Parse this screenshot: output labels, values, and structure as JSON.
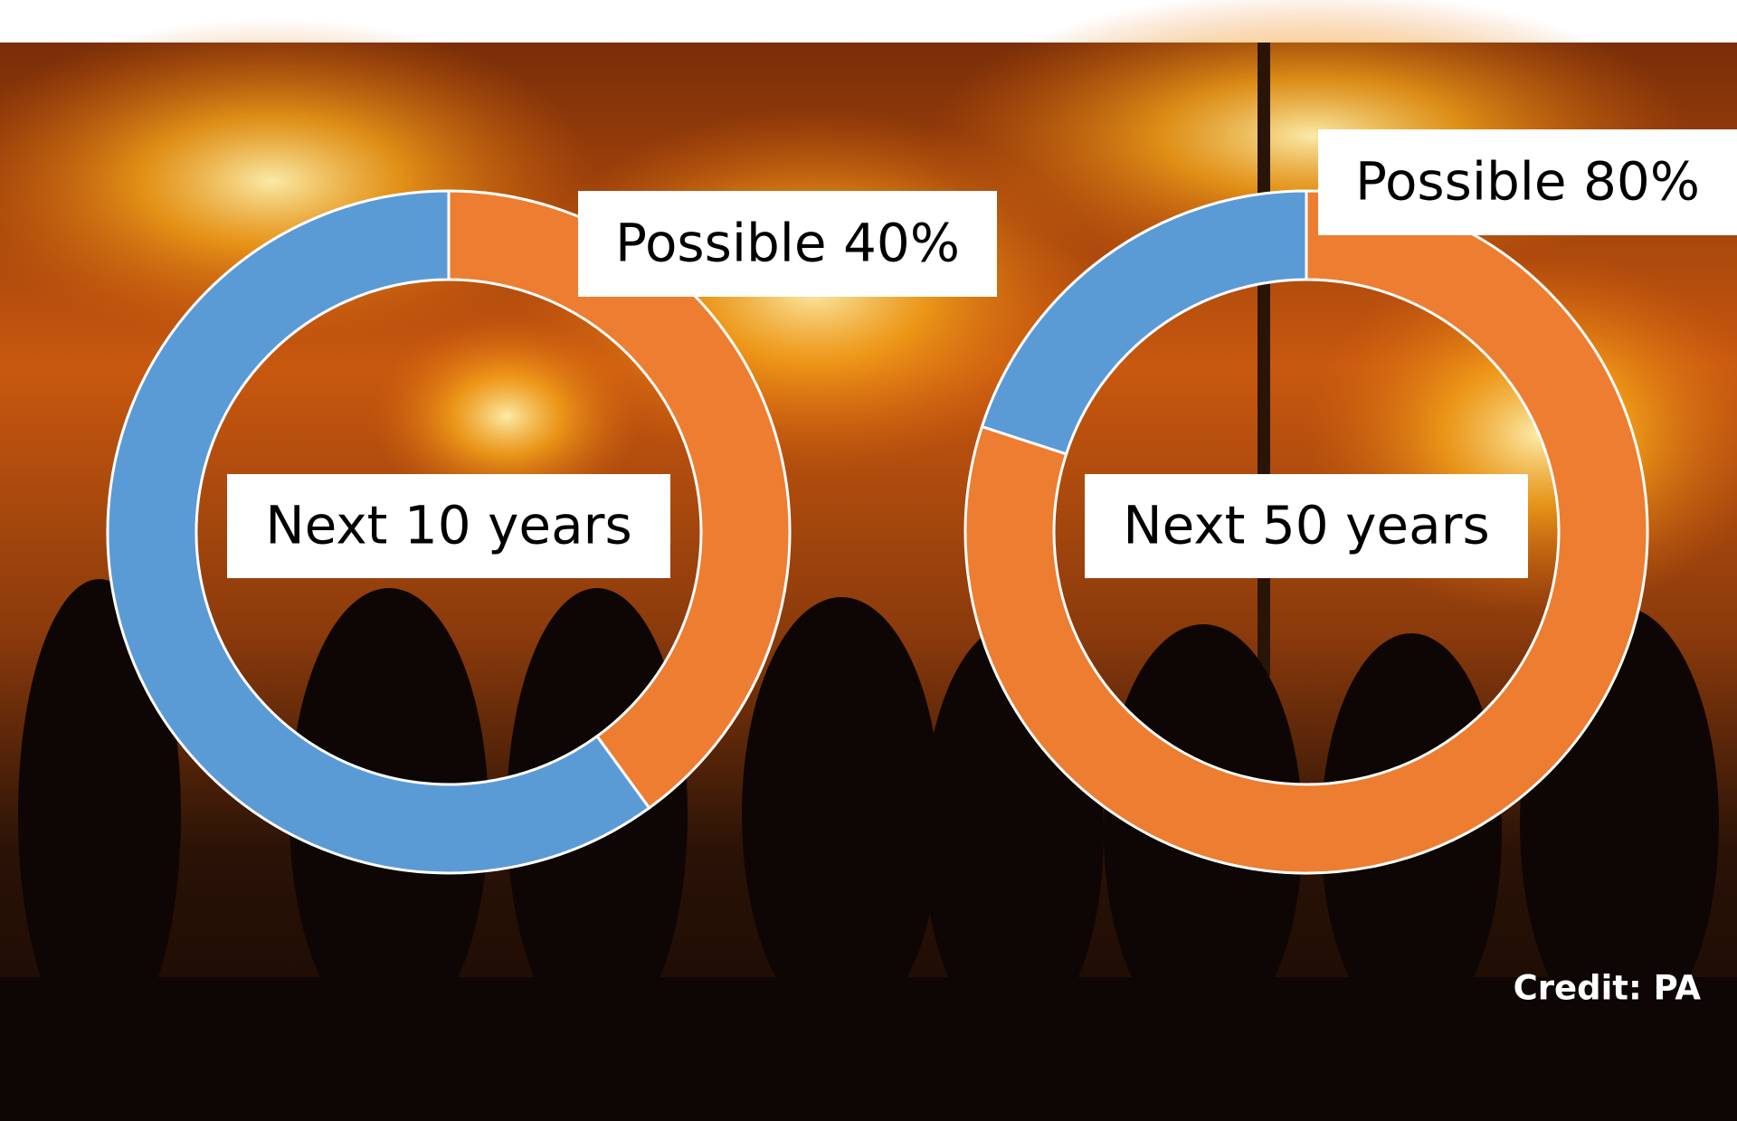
{
  "chart_data": [
    {
      "type": "donut",
      "title": "Next 10 years",
      "values": [
        40,
        60
      ],
      "value_labels": [
        "Possible 40%",
        null
      ],
      "colors": [
        "#ed7d31",
        "#5b9bd5"
      ]
    },
    {
      "type": "donut",
      "title": "Next 50 years",
      "values": [
        80,
        20
      ],
      "value_labels": [
        "Possible 80%",
        null
      ],
      "colors": [
        "#ed7d31",
        "#5b9bd5"
      ]
    }
  ],
  "credit": "Credit: PA"
}
